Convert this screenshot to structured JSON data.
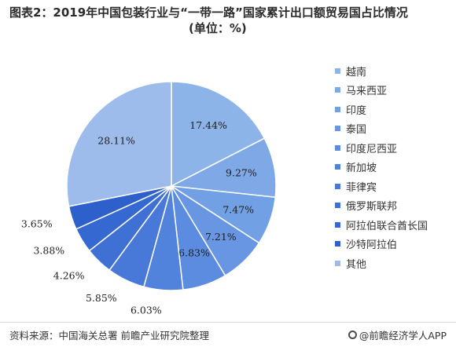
{
  "title": {
    "main": "图表2：2019年中国包装行业与“一带一路”国家累计出口额贸易国占比情况",
    "sub": "(单位：%)"
  },
  "chart_data": {
    "type": "pie",
    "categories": [
      "越南",
      "马来西亚",
      "印度",
      "泰国",
      "印度尼西亚",
      "新加坡",
      "菲律宾",
      "俄罗斯联邦",
      "阿拉伯联合酋长国",
      "沙特阿拉伯",
      "其他"
    ],
    "values": [
      17.44,
      9.27,
      7.47,
      7.21,
      6.83,
      6.03,
      5.85,
      4.26,
      3.88,
      3.65,
      28.11
    ],
    "value_labels": [
      "17.44%",
      "9.27%",
      "7.47%",
      "7.21%",
      "6.83%",
      "6.03%",
      "5.85%",
      "4.26%",
      "3.88%",
      "3.65%",
      "28.11%"
    ],
    "colors": [
      "#8cb4e8",
      "#7ea8e6",
      "#72a0e4",
      "#6896e2",
      "#5c8cdf",
      "#5182dc",
      "#4878d8",
      "#3f70d4",
      "#3568d0",
      "#2e60cb",
      "#9dbbeb"
    ],
    "legend_position": "right",
    "start_angle_deg": 0,
    "direction": "clockwise"
  },
  "footer": {
    "source": "资料来源：中国海关总署 前瞻产业研究院整理",
    "brand": "@前瞻经济学人APP"
  }
}
